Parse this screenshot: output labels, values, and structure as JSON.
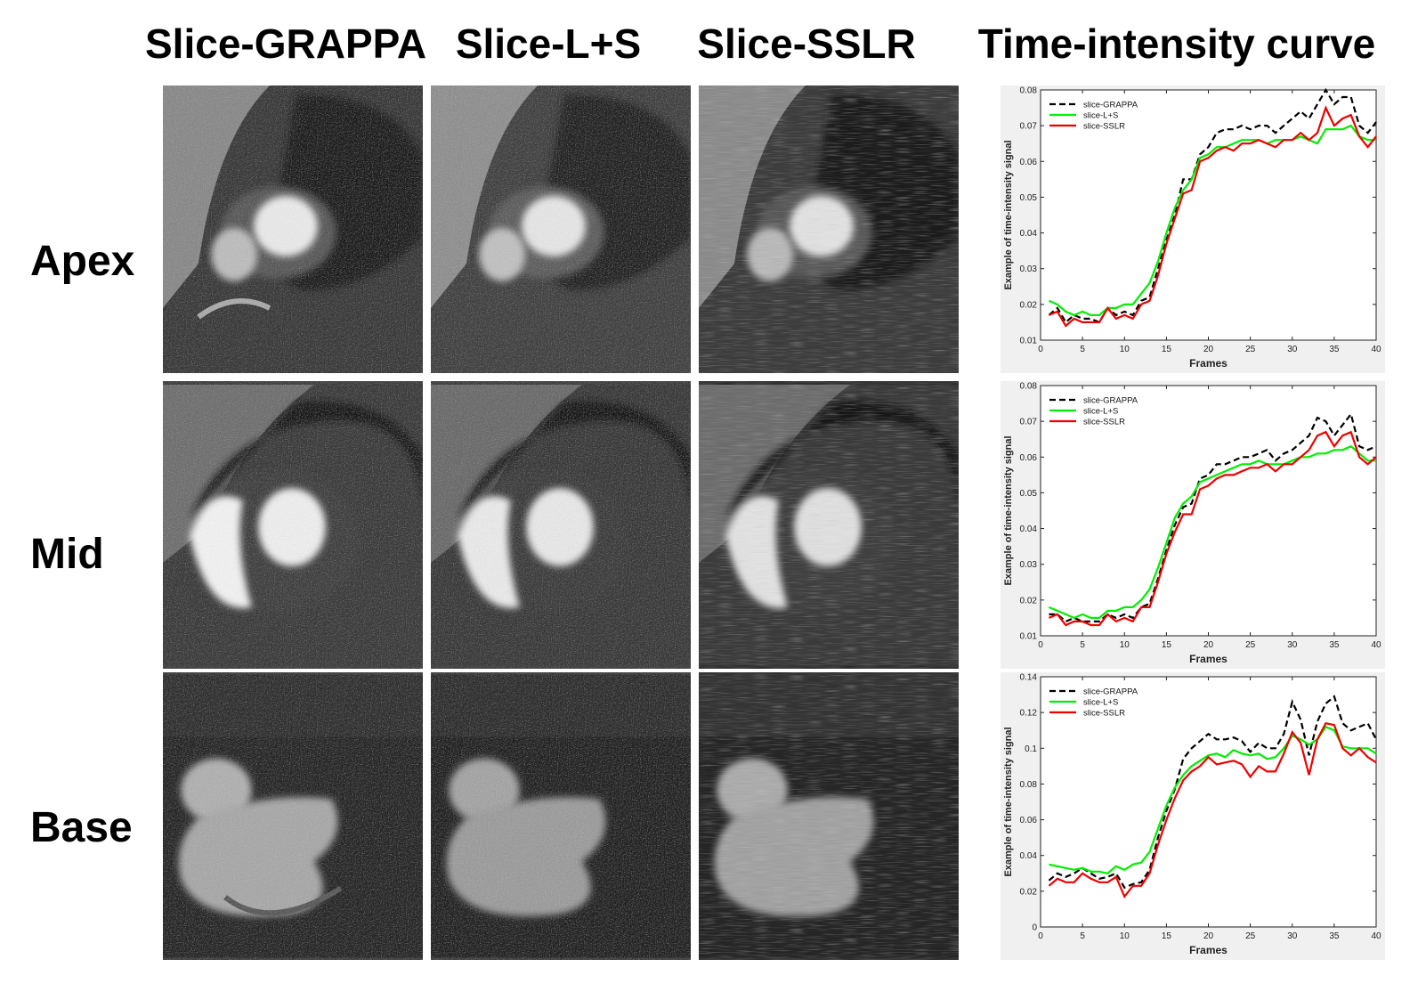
{
  "column_titles": {
    "grappa": "Slice-GRAPPA",
    "ls": "Slice-L+S",
    "sslr": "Slice-SSLR",
    "curve": "Time-intensity curve"
  },
  "row_labels": {
    "apex": "Apex",
    "mid": "Mid",
    "base": "Base"
  },
  "colors": {
    "grappa": "#000000",
    "ls": "#00ee00",
    "sslr": "#ee0000",
    "panel_bg": "#f0f0f0"
  },
  "chart_data": [
    {
      "type": "line",
      "row": "Apex",
      "xlabel": "Frames",
      "ylabel": "Example of time-intensity signal",
      "xlim": [
        0,
        40
      ],
      "ylim": [
        0.01,
        0.08
      ],
      "xticks": [
        "0",
        "5",
        "10",
        "15",
        "20",
        "25",
        "30",
        "35",
        "40"
      ],
      "yticks": [
        "0.01",
        "0.02",
        "0.03",
        "0.04",
        "0.05",
        "0.06",
        "0.07",
        "0.08"
      ],
      "legend": "top-left",
      "x": [
        1,
        2,
        3,
        4,
        5,
        6,
        7,
        8,
        9,
        10,
        11,
        12,
        13,
        14,
        15,
        16,
        17,
        18,
        19,
        20,
        21,
        22,
        23,
        24,
        25,
        26,
        27,
        28,
        29,
        30,
        31,
        32,
        33,
        34,
        35,
        36,
        37,
        38,
        39,
        40
      ],
      "series": [
        {
          "name": "slice-GRAPPA",
          "style": "dashed",
          "color": "#000000",
          "values": [
            0.017,
            0.019,
            0.015,
            0.017,
            0.016,
            0.016,
            0.015,
            0.019,
            0.017,
            0.018,
            0.017,
            0.021,
            0.022,
            0.03,
            0.038,
            0.045,
            0.055,
            0.055,
            0.062,
            0.064,
            0.068,
            0.069,
            0.069,
            0.07,
            0.069,
            0.07,
            0.07,
            0.068,
            0.07,
            0.072,
            0.074,
            0.072,
            0.076,
            0.08,
            0.076,
            0.078,
            0.078,
            0.07,
            0.068,
            0.071
          ]
        },
        {
          "name": "slice-L+S",
          "style": "solid",
          "color": "#00ee00",
          "values": [
            0.021,
            0.02,
            0.018,
            0.017,
            0.018,
            0.017,
            0.017,
            0.019,
            0.019,
            0.02,
            0.02,
            0.023,
            0.026,
            0.032,
            0.04,
            0.047,
            0.052,
            0.055,
            0.061,
            0.062,
            0.064,
            0.064,
            0.065,
            0.066,
            0.066,
            0.066,
            0.065,
            0.066,
            0.066,
            0.066,
            0.067,
            0.066,
            0.065,
            0.069,
            0.069,
            0.069,
            0.07,
            0.067,
            0.066,
            0.066
          ]
        },
        {
          "name": "slice-SSLR",
          "style": "solid",
          "color": "#ee0000",
          "values": [
            0.017,
            0.018,
            0.014,
            0.016,
            0.015,
            0.015,
            0.015,
            0.019,
            0.016,
            0.017,
            0.016,
            0.02,
            0.021,
            0.028,
            0.037,
            0.044,
            0.051,
            0.052,
            0.06,
            0.061,
            0.063,
            0.064,
            0.063,
            0.065,
            0.065,
            0.066,
            0.065,
            0.064,
            0.066,
            0.066,
            0.068,
            0.066,
            0.068,
            0.075,
            0.07,
            0.072,
            0.073,
            0.067,
            0.064,
            0.067
          ]
        }
      ]
    },
    {
      "type": "line",
      "row": "Mid",
      "xlabel": "Frames",
      "ylabel": "Example of time-intensity signal",
      "xlim": [
        0,
        40
      ],
      "ylim": [
        0.01,
        0.08
      ],
      "xticks": [
        "0",
        "5",
        "10",
        "15",
        "20",
        "25",
        "30",
        "35",
        "40"
      ],
      "yticks": [
        "0.01",
        "0.02",
        "0.03",
        "0.04",
        "0.05",
        "0.06",
        "0.07",
        "0.08"
      ],
      "legend": "top-left",
      "x": [
        1,
        2,
        3,
        4,
        5,
        6,
        7,
        8,
        9,
        10,
        11,
        12,
        13,
        14,
        15,
        16,
        17,
        18,
        19,
        20,
        21,
        22,
        23,
        24,
        25,
        26,
        27,
        28,
        29,
        30,
        31,
        32,
        33,
        34,
        35,
        36,
        37,
        38,
        39,
        40
      ],
      "series": [
        {
          "name": "slice-GRAPPA",
          "style": "dashed",
          "color": "#000000",
          "values": [
            0.016,
            0.016,
            0.014,
            0.015,
            0.014,
            0.014,
            0.014,
            0.016,
            0.015,
            0.016,
            0.015,
            0.018,
            0.019,
            0.026,
            0.034,
            0.041,
            0.046,
            0.047,
            0.054,
            0.055,
            0.058,
            0.058,
            0.059,
            0.06,
            0.06,
            0.061,
            0.062,
            0.059,
            0.061,
            0.062,
            0.064,
            0.066,
            0.071,
            0.07,
            0.066,
            0.069,
            0.072,
            0.063,
            0.062,
            0.063
          ]
        },
        {
          "name": "slice-L+S",
          "style": "solid",
          "color": "#00ee00",
          "values": [
            0.018,
            0.017,
            0.016,
            0.015,
            0.016,
            0.015,
            0.015,
            0.017,
            0.017,
            0.018,
            0.018,
            0.02,
            0.023,
            0.029,
            0.036,
            0.043,
            0.047,
            0.049,
            0.053,
            0.054,
            0.055,
            0.056,
            0.057,
            0.058,
            0.058,
            0.059,
            0.058,
            0.058,
            0.058,
            0.059,
            0.06,
            0.06,
            0.061,
            0.061,
            0.062,
            0.062,
            0.063,
            0.061,
            0.059,
            0.059
          ]
        },
        {
          "name": "slice-SSLR",
          "style": "solid",
          "color": "#ee0000",
          "values": [
            0.015,
            0.016,
            0.013,
            0.014,
            0.014,
            0.013,
            0.013,
            0.016,
            0.014,
            0.015,
            0.014,
            0.018,
            0.018,
            0.025,
            0.033,
            0.039,
            0.044,
            0.044,
            0.051,
            0.052,
            0.054,
            0.055,
            0.055,
            0.056,
            0.057,
            0.057,
            0.058,
            0.056,
            0.058,
            0.058,
            0.06,
            0.062,
            0.066,
            0.067,
            0.063,
            0.066,
            0.067,
            0.06,
            0.058,
            0.06
          ]
        }
      ]
    },
    {
      "type": "line",
      "row": "Base",
      "xlabel": "Frames",
      "ylabel": "Example of time-intensity signal",
      "xlim": [
        0,
        40
      ],
      "ylim": [
        0,
        0.14
      ],
      "xticks": [
        "0",
        "5",
        "10",
        "15",
        "20",
        "25",
        "30",
        "35",
        "40"
      ],
      "yticks": [
        "0",
        "0.02",
        "0.04",
        "0.06",
        "0.08",
        "0.1",
        "0.12",
        "0.14"
      ],
      "legend": "top-left",
      "x": [
        1,
        2,
        3,
        4,
        5,
        6,
        7,
        8,
        9,
        10,
        11,
        12,
        13,
        14,
        15,
        16,
        17,
        18,
        19,
        20,
        21,
        22,
        23,
        24,
        25,
        26,
        27,
        28,
        29,
        30,
        31,
        32,
        33,
        34,
        35,
        36,
        37,
        38,
        39,
        40
      ],
      "series": [
        {
          "name": "slice-GRAPPA",
          "style": "dashed",
          "color": "#000000",
          "values": [
            0.026,
            0.03,
            0.028,
            0.03,
            0.033,
            0.03,
            0.027,
            0.028,
            0.03,
            0.022,
            0.024,
            0.025,
            0.032,
            0.05,
            0.065,
            0.077,
            0.094,
            0.1,
            0.104,
            0.108,
            0.105,
            0.105,
            0.106,
            0.104,
            0.098,
            0.103,
            0.1,
            0.1,
            0.108,
            0.126,
            0.116,
            0.096,
            0.115,
            0.125,
            0.129,
            0.114,
            0.11,
            0.112,
            0.114,
            0.105
          ]
        },
        {
          "name": "slice-L+S",
          "style": "solid",
          "color": "#00ee00",
          "values": [
            0.035,
            0.034,
            0.033,
            0.032,
            0.033,
            0.031,
            0.031,
            0.03,
            0.034,
            0.032,
            0.035,
            0.036,
            0.042,
            0.055,
            0.068,
            0.078,
            0.085,
            0.09,
            0.093,
            0.096,
            0.097,
            0.095,
            0.099,
            0.097,
            0.096,
            0.097,
            0.094,
            0.095,
            0.1,
            0.107,
            0.105,
            0.102,
            0.105,
            0.112,
            0.11,
            0.101,
            0.1,
            0.1,
            0.1,
            0.097
          ]
        },
        {
          "name": "slice-SSLR",
          "style": "solid",
          "color": "#ee0000",
          "values": [
            0.023,
            0.027,
            0.025,
            0.025,
            0.03,
            0.027,
            0.025,
            0.025,
            0.028,
            0.017,
            0.023,
            0.023,
            0.03,
            0.046,
            0.06,
            0.072,
            0.082,
            0.087,
            0.09,
            0.095,
            0.091,
            0.092,
            0.093,
            0.091,
            0.084,
            0.09,
            0.087,
            0.087,
            0.097,
            0.109,
            0.103,
            0.085,
            0.105,
            0.114,
            0.113,
            0.1,
            0.096,
            0.1,
            0.095,
            0.092
          ]
        }
      ]
    }
  ]
}
